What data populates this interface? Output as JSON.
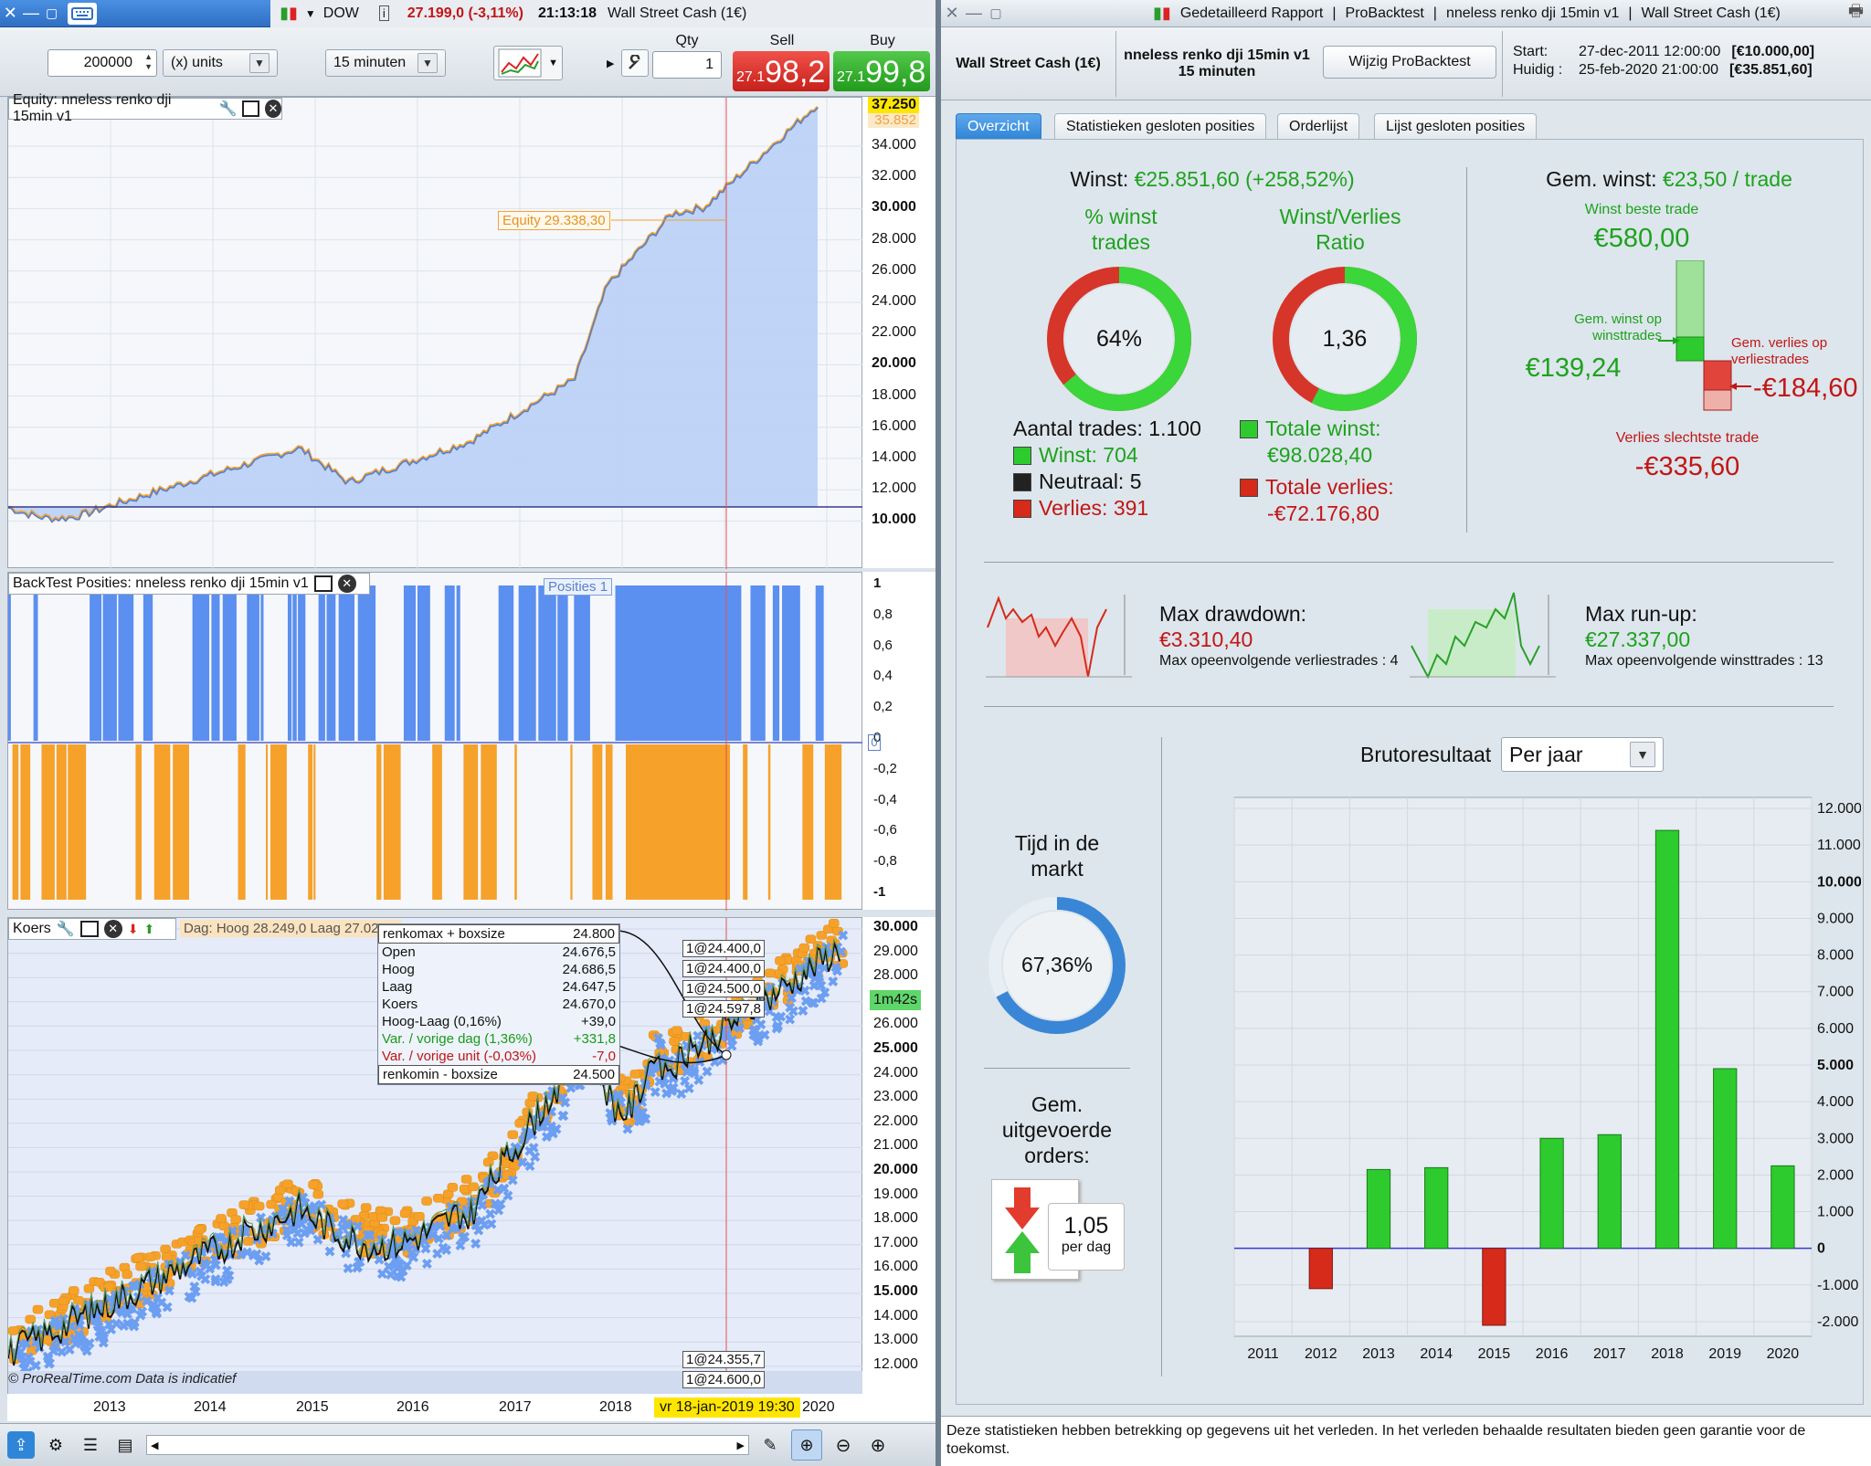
{
  "left_window": {
    "instrument": "DOW",
    "price_change": "27.199,0 (-3,11%)",
    "time": "21:13:18",
    "instrument_name": "Wall Street Cash (1€)",
    "toolbar": {
      "quantity_value": "200000",
      "units_label": "(x) units",
      "timeframe": "15 minuten",
      "qty_label": "Qty",
      "qty_value": "1",
      "sell_label": "Sell",
      "buy_label": "Buy",
      "sell_prefix": "27.1",
      "sell_price": "98,2",
      "buy_prefix": "27.1",
      "buy_price": "99,8"
    },
    "equity_panel": {
      "title": "Equity: nneless renko dji 15min v1",
      "top_value": "37.250",
      "top_value2": "35.852",
      "equity_tooltip": "Equity 29.338,30",
      "y_ticks": [
        "34.000",
        "32.000",
        "30.000",
        "28.000",
        "26.000",
        "24.000",
        "22.000",
        "20.000",
        "18.000",
        "16.000",
        "14.000",
        "12.000",
        "10.000"
      ]
    },
    "positions_panel": {
      "title": "BackTest Posities: nneless renko dji 15min v1",
      "tooltip": "Posities 1",
      "zero_tag": "0",
      "y_ticks": [
        "1",
        "0,8",
        "0,6",
        "0,4",
        "0,2",
        "0",
        "-0,2",
        "-0,4",
        "-0,6",
        "-0,8",
        "-1"
      ]
    },
    "price_panel": {
      "title": "Koers",
      "day_info": "Dag: Hoog 28.249,0 Laag 27.027,5",
      "countdown": "1m42s",
      "info_rows": [
        {
          "label": "renkomax + boxsize",
          "value": "24.800",
          "color": "#111"
        },
        {
          "label": "Open",
          "value": "24.676,5",
          "color": "#111"
        },
        {
          "label": "Hoog",
          "value": "24.686,5",
          "color": "#111"
        },
        {
          "label": "Laag",
          "value": "24.647,5",
          "color": "#111"
        },
        {
          "label": "Koers",
          "value": "24.670,0",
          "color": "#111"
        },
        {
          "label": "Hoog-Laag (0,16%)",
          "value": "+39,0",
          "color": "#111"
        },
        {
          "label": "Var. / vorige dag (1,36%)",
          "value": "+331,8",
          "color": "#1a9a1a"
        },
        {
          "label": "Var. / vorige unit (-0,03%)",
          "value": "-7,0",
          "color": "#c01515"
        },
        {
          "label": "renkomin - boxsize",
          "value": "24.500",
          "color": "#111"
        }
      ],
      "order_tags": [
        "1@24.400,0",
        "1@24.400,0",
        "1@24.500,0",
        "1@24.597,8"
      ],
      "order_tags_bottom": [
        "1@24.355,7",
        "1@24.600,0"
      ],
      "y_ticks": [
        "30.000",
        "29.000",
        "28.000",
        "27.000",
        "26.000",
        "25.000",
        "24.000",
        "23.000",
        "22.000",
        "21.000",
        "20.000",
        "19.000",
        "18.000",
        "17.000",
        "16.000",
        "15.000",
        "14.000",
        "13.000",
        "12.000"
      ],
      "watermark": "© ProRealTime.com  Data is indicatief",
      "x_labels": [
        "2013",
        "2014",
        "2015",
        "2016",
        "2017",
        "2018",
        "2020"
      ],
      "date_highlight": "vr 18-jan-2019 19:30"
    }
  },
  "right_window": {
    "title_parts": [
      "Gedetailleerd Rapport",
      "ProBacktest",
      "nneless renko dji 15min v1",
      "Wall Street Cash (1€)"
    ],
    "header": {
      "instrument": "Wall Street Cash (1€)",
      "system_name": "nneless renko dji 15min v1",
      "system_tf": "15 minuten",
      "modify_button": "Wijzig ProBacktest",
      "start_label": "Start:",
      "start_date": "27-dec-2011 12:00:00",
      "start_capital": "[€10.000,00]",
      "current_label": "Huidig :",
      "current_date": "25-feb-2020 21:00:00",
      "current_capital": "[€35.851,60]"
    },
    "tabs": [
      "Overzicht",
      "Statistieken gesloten posities",
      "Orderlijst",
      "Lijst gesloten posities"
    ],
    "summary": {
      "profit_label": "Winst:",
      "profit_value": "€25.851,60 (+258,52%)",
      "pct_win_label_1": "% winst",
      "pct_win_label_2": "trades",
      "pct_win_value": "64%",
      "pct_win_fraction": 0.64,
      "ratio_label_1": "Winst/Verlies",
      "ratio_label_2": "Ratio",
      "ratio_value": "1,36",
      "ratio_fraction": 0.576,
      "trades_label": "Aantal trades: 1.100",
      "win_count": "Winst: 704",
      "neutral_count": "Neutraal: 5",
      "loss_count": "Verlies: 391",
      "total_win_label": "Totale winst:",
      "total_win_value": "€98.028,40",
      "total_loss_label": "Totale verlies:",
      "total_loss_value": "-€72.176,80",
      "avg_label": "Gem. winst:",
      "avg_value": "€23,50 / trade",
      "best_label": "Winst beste trade",
      "best_value": "€580,00",
      "avg_win_label_1": "Gem. winst op",
      "avg_win_label_2": "winsttrades",
      "avg_win_value": "€139,24",
      "avg_loss_label_1": "Gem. verlies op",
      "avg_loss_label_2": "verliestrades",
      "avg_loss_value": "-€184,60",
      "worst_label": "Verlies slechtste trade",
      "worst_value": "-€335,60"
    },
    "drawdown": {
      "label": "Max drawdown:",
      "value": "€3.310,40",
      "sub": "Max opeenvolgende verliestrades : 4"
    },
    "runup": {
      "label": "Max run-up:",
      "value": "€27.337,00",
      "sub": "Max opeenvolgende winsttrades : 13"
    },
    "time_in_market": {
      "label_1": "Tijd in de",
      "label_2": "markt",
      "value": "67,36%",
      "fraction": 0.6736
    },
    "orders": {
      "label_1": "Gem.",
      "label_2": "uitgevoerde",
      "label_3": "orders:",
      "value": "1,05",
      "unit": "per dag"
    },
    "bruto": {
      "label": "Brutoresultaat",
      "period": "Per jaar"
    },
    "disclaimer": "Deze statistieken hebben betrekking op gegevens uit het verleden. In het verleden behaalde resultaten bieden geen garantie voor de toekomst."
  },
  "chart_data": {
    "type": "bar",
    "categories": [
      "2011",
      "2012",
      "2013",
      "2014",
      "2015",
      "2016",
      "2017",
      "2018",
      "2019",
      "2020"
    ],
    "values": [
      0,
      -1100,
      2150,
      2200,
      -2100,
      3000,
      3100,
      11400,
      4900,
      2250
    ],
    "title": "Brutoresultaat",
    "xlabel": "",
    "ylabel": "",
    "ylim": [
      -2400,
      12300
    ],
    "y_ticks": [
      12000,
      11000,
      10000,
      9000,
      8000,
      7000,
      6000,
      5000,
      4000,
      3000,
      2000,
      1000,
      0,
      -1000,
      -2000
    ],
    "y_tick_labels": [
      "12.000",
      "11.000",
      "10.000",
      "9.000",
      "8.000",
      "7.000",
      "6.000",
      "5.000",
      "4.000",
      "3.000",
      "2.000",
      "1.000",
      "0",
      "-1.000",
      "-2.000"
    ],
    "positive_color": "#2ecb2e",
    "negative_color": "#d62a1a"
  }
}
